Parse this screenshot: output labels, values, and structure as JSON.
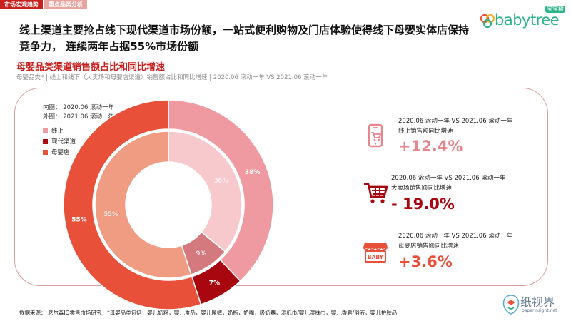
{
  "tabs": [
    "市场宏观趋势",
    "重点品类分析"
  ],
  "logo": {
    "text": "babytree",
    "badge": "宝宝树"
  },
  "headline": "线上渠道主要抢占线下现代渠道市场份额，一站式便利购物及门店体验使得线下母婴实体店保持竞争力， 连续两年占据55%市场份额",
  "section": {
    "title": "母婴品类渠道销售额占比和同比增速",
    "subtitle": "母婴品类* | 线上和线下（大卖场和母婴店渠道）销售额占比和同比增速 | 2020.06 滚动一年 VS 2021.06 滚动一年"
  },
  "chart_data": {
    "type": "pie",
    "variant": "double-ring donut",
    "ring_notes": [
      "内圈： 2020.06 滚动一年",
      "外圈： 2021.06 滚动一年"
    ],
    "categories": [
      "线上",
      "现代渠道",
      "母婴店"
    ],
    "series": [
      {
        "name": "2020.06 滚动一年",
        "ring": "inner",
        "values": [
          36,
          9,
          55
        ],
        "labels": [
          "36%",
          "9%",
          "55%"
        ]
      },
      {
        "name": "2021.06 滚动一年",
        "ring": "outer",
        "values": [
          38,
          7,
          55
        ],
        "labels": [
          "38%",
          "7%",
          "55%"
        ]
      }
    ],
    "colors": {
      "outer": [
        "#ef9aa1",
        "#a8070f",
        "#e8503a"
      ],
      "inner": [
        "#f7c8cc",
        "#d4797d",
        "#ef9c82"
      ]
    },
    "label_colors": {
      "outer": [
        "#ffffff",
        "#ffffff",
        "#ffffff"
      ],
      "inner": [
        "#ffffff",
        "#ffffff",
        "#ffffff"
      ]
    }
  },
  "stats": [
    {
      "icon": "phone-cart-icon",
      "period": "2020.06 滚动一年 VS 2021.06 滚动一年",
      "label": "线上销售额同比增速",
      "value": "+12.4%",
      "color": "#e4868c"
    },
    {
      "icon": "shopping-cart-icon",
      "period": "2020.06 滚动一年 VS 2021.06 滚动一年",
      "label": "大卖场销售额同比增速",
      "value": "- 19.0%",
      "color": "#a8070f"
    },
    {
      "icon": "baby-store-icon",
      "period": "2020.06 滚动一年 VS 2021.06 滚动一年",
      "label": "母婴店销售额同比增速",
      "value": "+3.6%",
      "color": "#e8503a"
    }
  ],
  "source": "数据来源： 尼尔森IQ零售市场研究；*母婴品类包括：婴儿奶粉，婴儿食品，婴儿尿裤，奶瓶，奶嘴，吸奶器，湿纸巾/婴儿湿抹巾，婴儿香皂/浴液，婴儿护肤品",
  "watermark": {
    "text": "纸视界",
    "url": "paperinsight.net"
  },
  "colors": {
    "accent": "#c8201e",
    "tab_inactive": "#e8a49e",
    "logo": "#2bb38a"
  }
}
